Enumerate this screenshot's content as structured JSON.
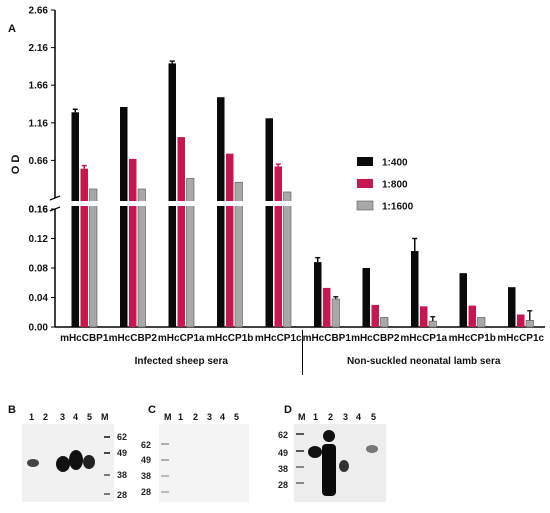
{
  "panel_labels": {
    "a": "A",
    "b": "B",
    "c": "C",
    "d": "D"
  },
  "chart_data": {
    "type": "bar",
    "ylabel": "O D",
    "y_upper": {
      "ticks": [
        "0.16",
        "0.66",
        "1.16",
        "1.66",
        "2.16",
        "2.66"
      ],
      "ylim": [
        0.16,
        2.66
      ]
    },
    "y_lower": {
      "ticks": [
        "0.00",
        "0.04",
        "0.08",
        "0.12",
        "0.16"
      ],
      "ylim": [
        0.0,
        0.16
      ]
    },
    "categories": [
      "mHcCBP1",
      "mHcCBP2",
      "mHcCP1a",
      "mHcCP1b",
      "mHcCP1c",
      "mHcCBP1",
      "mHcCBP2",
      "mHcCP1a",
      "mHcCP1b",
      "mHcCP1c"
    ],
    "groups": [
      {
        "label": "Infected sheep sera",
        "categories": [
          0,
          1,
          2,
          3,
          4
        ]
      },
      {
        "label": "Non-suckled neonatal lamb sera",
        "categories": [
          5,
          6,
          7,
          8,
          9
        ]
      }
    ],
    "series": [
      {
        "name": "1:400",
        "color": "#0a0a0a",
        "values": [
          1.3,
          1.37,
          1.95,
          1.5,
          1.22,
          0.088,
          0.08,
          0.103,
          0.073,
          0.054
        ],
        "errors": [
          0.04,
          0.0,
          0.03,
          0.0,
          0.0,
          0.006,
          0.0,
          0.017,
          0.0,
          0.0
        ]
      },
      {
        "name": "1:800",
        "color": "#c8174f",
        "values": [
          0.55,
          0.68,
          0.97,
          0.75,
          0.58,
          0.053,
          0.03,
          0.028,
          0.029,
          0.017
        ],
        "errors": [
          0.04,
          0.0,
          0.0,
          0.0,
          0.03,
          0.0,
          0.0,
          0.0,
          0.0,
          0.0
        ]
      },
      {
        "name": "1:1600",
        "color": "#a8a8a8",
        "values": [
          0.28,
          0.28,
          0.42,
          0.37,
          0.24,
          0.038,
          0.013,
          0.008,
          0.013,
          0.009
        ],
        "errors": [
          0.0,
          0.0,
          0.0,
          0.0,
          0.0,
          0.003,
          0.0,
          0.006,
          0.0,
          0.013
        ]
      }
    ],
    "legend_position": "right"
  },
  "blots": {
    "b": {
      "lanes": [
        "1",
        "2",
        "3",
        "4",
        "5",
        "M"
      ],
      "markers": [
        "62",
        "49",
        "38",
        "28"
      ]
    },
    "c": {
      "lanes": [
        "M",
        "1",
        "2",
        "3",
        "4",
        "5"
      ],
      "markers": [
        "62",
        "49",
        "38",
        "28"
      ]
    },
    "d": {
      "lanes": [
        "M",
        "1",
        "2",
        "3",
        "4",
        "5"
      ],
      "markers": [
        "62",
        "49",
        "38",
        "28"
      ]
    }
  }
}
